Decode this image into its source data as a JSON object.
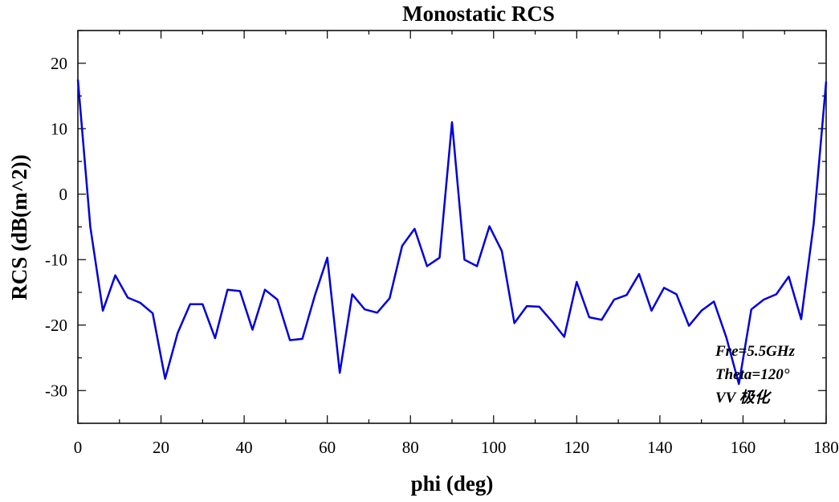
{
  "chart_data": {
    "type": "line",
    "title": "Monostatic RCS",
    "xlabel": "phi (deg)",
    "ylabel": "RCS (dB(m^2))",
    "xlim": [
      0,
      180
    ],
    "ylim": [
      -35,
      25
    ],
    "x_ticks": [
      0,
      20,
      40,
      60,
      80,
      100,
      120,
      140,
      160,
      180
    ],
    "y_ticks": [
      -30,
      -20,
      -10,
      0,
      10,
      20
    ],
    "grid": false,
    "line_color": "#0000dd",
    "annotations": [
      "Fre=5.5GHz",
      "Theta=120°",
      "VV 极化"
    ],
    "series": [
      {
        "x": [
          0,
          3,
          6,
          9,
          12,
          15,
          18,
          21,
          24,
          27,
          30,
          33,
          36,
          39,
          42,
          45,
          48,
          51,
          54,
          57,
          60,
          63,
          66,
          69,
          72,
          75,
          78,
          81,
          84,
          87,
          90,
          93,
          96,
          99,
          102,
          105,
          108,
          111,
          114,
          117,
          120,
          123,
          126,
          129,
          132,
          135,
          138,
          141,
          144,
          147,
          150,
          153,
          156,
          159,
          162,
          165,
          168,
          171,
          174,
          177,
          180
        ],
        "values": [
          17.5,
          -5,
          -17.8,
          -12.4,
          -15.8,
          -16.6,
          -18.2,
          -28.2,
          -21.2,
          -16.8,
          -16.8,
          -22,
          -14.6,
          -14.8,
          -20.7,
          -14.6,
          -16.1,
          -22.3,
          -22.1,
          -15.5,
          -9.7,
          -27.3,
          -15.3,
          -17.6,
          -18.1,
          -15.9,
          -7.9,
          -5.3,
          -11,
          -9.7,
          11,
          -10,
          -11,
          -4.9,
          -8.7,
          -19.7,
          -17.1,
          -17.2,
          -19.4,
          -21.8,
          -13.4,
          -18.8,
          -19.2,
          -16.1,
          -15.4,
          -12.2,
          -17.8,
          -14.3,
          -15.3,
          -20.1,
          -17.8,
          -16.4,
          -21.9,
          -29,
          -17.6,
          -16.1,
          -15.3,
          -12.6,
          -19.1,
          -4.5,
          17.2
        ]
      }
    ]
  }
}
